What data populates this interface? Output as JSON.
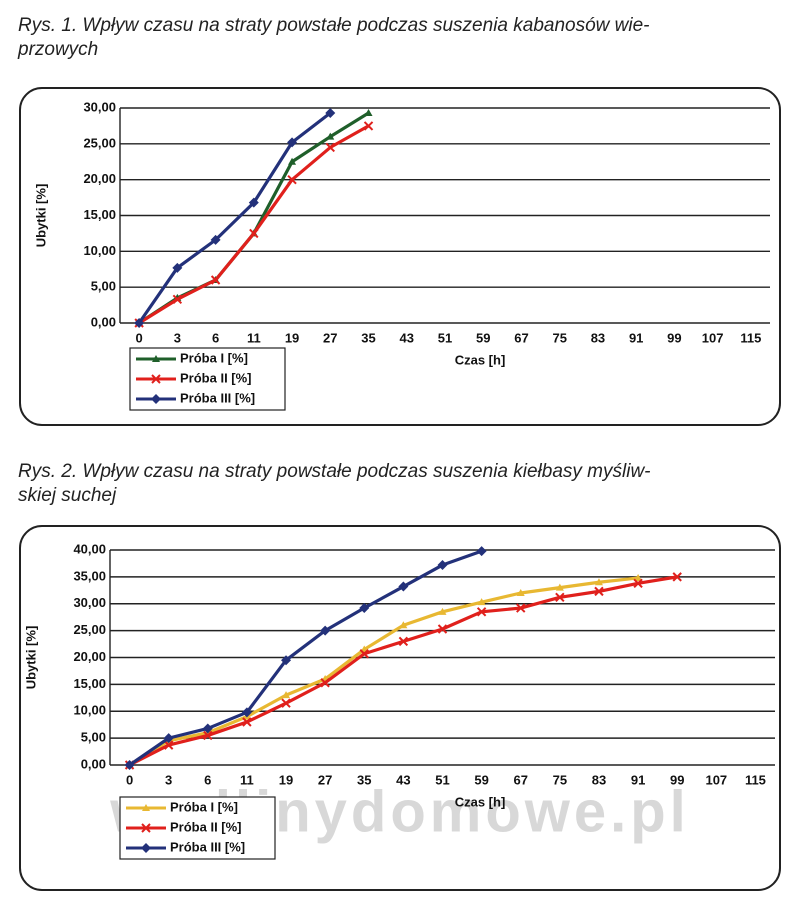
{
  "captions": [
    [
      "Rys. 1. Wpływ czasu na straty powstałe podczas suszenia kabanosów wie-",
      "przowych"
    ],
    [
      "Rys. 2. Wpływ czasu na straty powstałe podczas suszenia kiełbasy myśliw-",
      "skiej suchej"
    ]
  ],
  "watermark": "wedlinydomowe.pl",
  "chart_data": [
    {
      "type": "line",
      "y_label": "Ubytki [%]",
      "x_label": "Czas [h]",
      "grid": true,
      "categories": [
        "0",
        "3",
        "6",
        "11",
        "19",
        "27",
        "35",
        "43",
        "51",
        "59",
        "67",
        "75",
        "83",
        "91",
        "99",
        "107",
        "115"
      ],
      "ylim": [
        0,
        30
      ],
      "yticks": [
        {
          "value": 0,
          "label": "0,00"
        },
        {
          "value": 5,
          "label": "5,00"
        },
        {
          "value": 10,
          "label": "10,00"
        },
        {
          "value": 15,
          "label": "15,00"
        },
        {
          "value": 20,
          "label": "20,00"
        },
        {
          "value": 25,
          "label": "25,00"
        },
        {
          "value": 30,
          "label": "30,00"
        }
      ],
      "series": [
        {
          "name": "Próba I [%]",
          "color": "#1f5f2a",
          "marker": "triangle",
          "values": [
            0,
            3.5,
            6,
            12.5,
            22.5,
            26,
            29.3,
            null,
            null,
            null,
            null,
            null,
            null,
            null,
            null,
            null,
            null
          ]
        },
        {
          "name": "Próba II [%]",
          "color": "#e0201c",
          "marker": "x",
          "values": [
            0,
            3.3,
            6,
            12.5,
            20,
            24.5,
            27.5,
            null,
            null,
            null,
            null,
            null,
            null,
            null,
            null,
            null,
            null
          ]
        },
        {
          "name": "Próba III [%]",
          "color": "#23317a",
          "marker": "diamond",
          "values": [
            0,
            7.7,
            11.6,
            16.8,
            25.2,
            29.3,
            null,
            null,
            null,
            null,
            null,
            null,
            null,
            null,
            null,
            null,
            null
          ]
        }
      ]
    },
    {
      "type": "line",
      "y_label": "Ubytki [%]",
      "x_label": "Czas [h]",
      "grid": true,
      "categories": [
        "0",
        "3",
        "6",
        "11",
        "19",
        "27",
        "35",
        "43",
        "51",
        "59",
        "67",
        "75",
        "83",
        "91",
        "99",
        "107",
        "115"
      ],
      "ylim": [
        0,
        40
      ],
      "yticks": [
        {
          "value": 0,
          "label": "0,00"
        },
        {
          "value": 5,
          "label": "5,00"
        },
        {
          "value": 10,
          "label": "10,00"
        },
        {
          "value": 15,
          "label": "15,00"
        },
        {
          "value": 20,
          "label": "20,00"
        },
        {
          "value": 25,
          "label": "25,00"
        },
        {
          "value": 30,
          "label": "30,00"
        },
        {
          "value": 35,
          "label": "35,00"
        },
        {
          "value": 40,
          "label": "40,00"
        }
      ],
      "series": [
        {
          "name": "Próba I [%]",
          "color": "#e8b832",
          "marker": "triangle",
          "values": [
            0,
            4.5,
            6,
            9,
            13,
            16,
            21.5,
            26,
            28.5,
            30.3,
            32,
            33,
            34,
            34.8,
            null,
            null,
            null
          ]
        },
        {
          "name": "Próba II [%]",
          "color": "#e0201c",
          "marker": "x",
          "values": [
            0,
            3.7,
            5.5,
            8,
            11.5,
            15.3,
            20.7,
            23,
            25.3,
            28.5,
            29.2,
            31.2,
            32.3,
            33.8,
            35,
            null,
            null
          ]
        },
        {
          "name": "Próba III [%]",
          "color": "#23317a",
          "marker": "diamond",
          "values": [
            0,
            5,
            6.8,
            9.8,
            19.5,
            25,
            29.2,
            33.2,
            37.2,
            39.8,
            null,
            null,
            null,
            null,
            null,
            null,
            null
          ]
        }
      ]
    }
  ]
}
